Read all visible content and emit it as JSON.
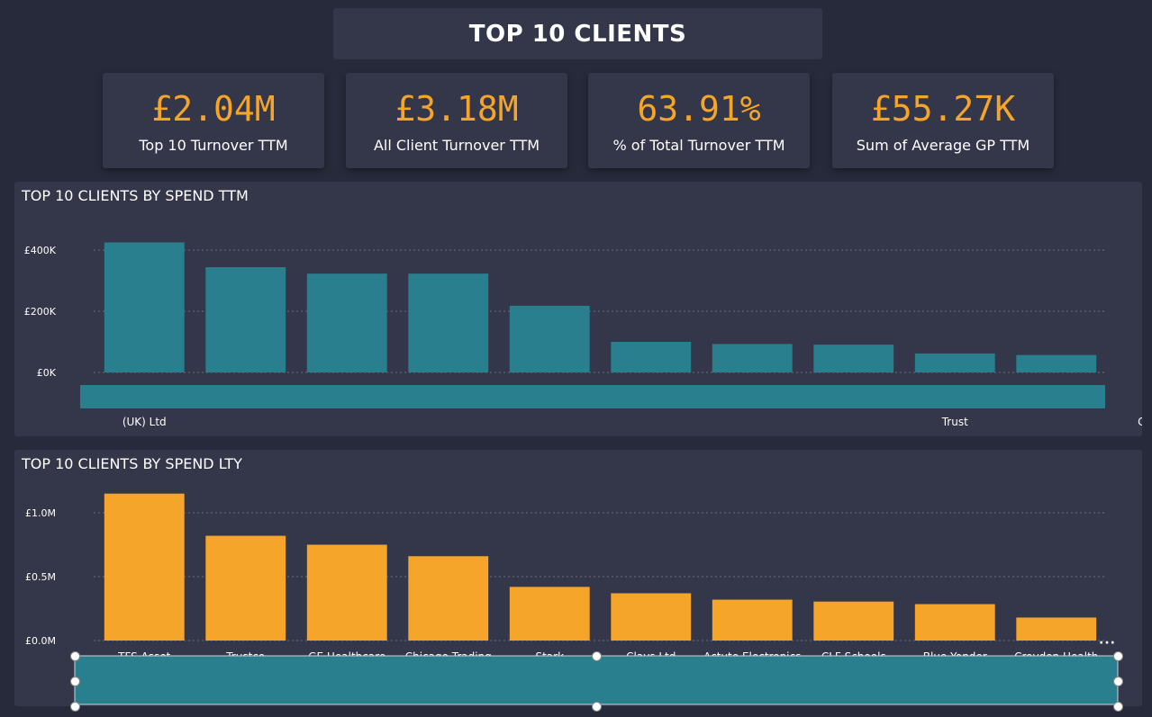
{
  "header": {
    "title": "TOP 10 CLIENTS"
  },
  "kpis": [
    {
      "value": "£2.04M",
      "label": "Top 10 Turnover TTM"
    },
    {
      "value": "£3.18M",
      "label": "All Client Turnover TTM"
    },
    {
      "value": "63.91%",
      "label": "% of Total Turnover TTM"
    },
    {
      "value": "£55.27K",
      "label": "Sum of Average GP TTM"
    }
  ],
  "colors": {
    "accent": "#f5a529",
    "teal": "#2a7f8f",
    "panel": "#343649",
    "background": "#272a3a"
  },
  "chart_data": [
    {
      "type": "bar",
      "title": "TOP 10 CLIENTS BY SPEND TTM",
      "yticks": [
        "£0K",
        "£200K",
        "£400K"
      ],
      "ylim": [
        0,
        400000
      ],
      "grid": true,
      "visible_category_labels": [
        "(UK) Ltd",
        "Trust",
        "Council"
      ],
      "values": [
        425000,
        344000,
        323000,
        323000,
        218000,
        100000,
        93000,
        91000,
        62000,
        57000
      ],
      "bar_color": "#2a7f8f",
      "note_bar": "label area covered by a scroll bar"
    },
    {
      "type": "bar",
      "title": "TOP 10 CLIENTS BY SPEND LTY",
      "yticks": [
        "£0.0M",
        "£0.5M",
        "£1.0M"
      ],
      "ylim": [
        0,
        1000000
      ],
      "grid": true,
      "categories": [
        "TFS Asset",
        "Trustco",
        "GE Healthcare",
        "Chicago Trading",
        "Stark",
        "Clays Ltd",
        "Actute Electronics",
        "CLF Schools",
        "Blue Yonder",
        "Croydon Health"
      ],
      "values": [
        1150000,
        820000,
        750000,
        660000,
        420000,
        370000,
        320000,
        305000,
        285000,
        180000
      ],
      "bar_color": "#f5a529"
    }
  ]
}
